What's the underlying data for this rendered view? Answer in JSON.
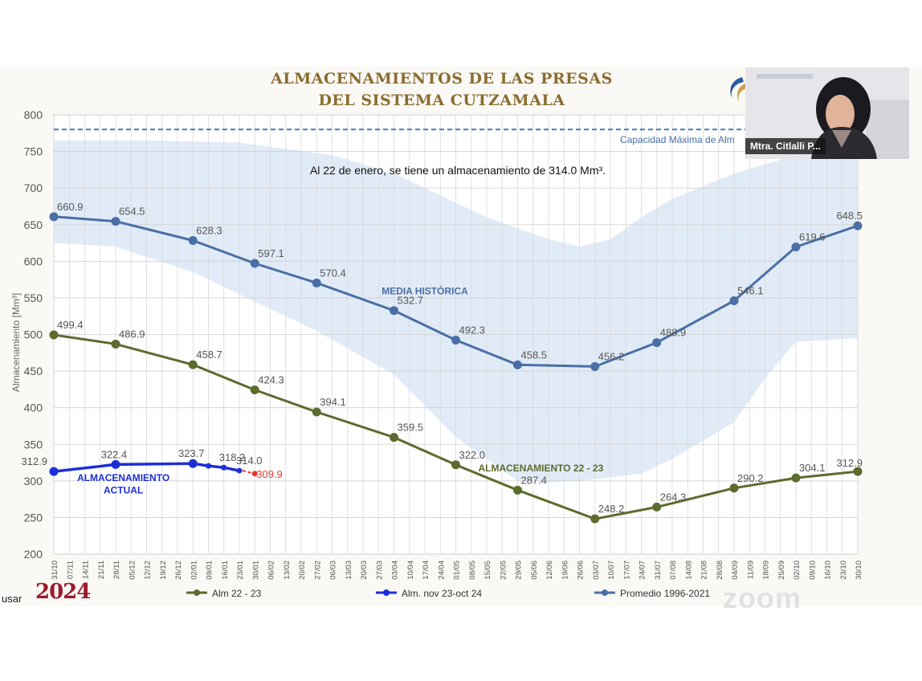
{
  "slide": {
    "title_line1": "ALMACENAMIENTOS DE LAS PRESAS",
    "title_line2": "DEL SISTEMA CUTZAMALA",
    "subtitle": "Al 22 de enero, se tiene un almacenamiento de 314.0 Mm³.",
    "capacity_label": "Capacidad Máxima de Alm",
    "brand_text": "2024",
    "user_label": "usar",
    "zoom_watermark": "zoom"
  },
  "video": {
    "participant_name": "Mtra. Citlalli P..."
  },
  "colors": {
    "alm2223": "#5c6b2e",
    "actual": "#1f2fd6",
    "promedio": "#4a6fa5",
    "band": "#dce8f6",
    "capacity": "#4a78b8",
    "projection": "#e53935",
    "title": "#8a6d2f"
  },
  "chart_data": {
    "type": "line",
    "ylabel": "Almacenamiento [Mm³]",
    "ylim": [
      200,
      800
    ],
    "yticks": [
      200,
      250,
      300,
      350,
      400,
      450,
      500,
      550,
      600,
      650,
      700,
      750,
      800
    ],
    "grid": true,
    "legend_position": "bottom",
    "x_labels": [
      "31/10",
      "07/11",
      "14/11",
      "21/11",
      "28/11",
      "05/12",
      "12/12",
      "19/12",
      "26/12",
      "02/01",
      "09/01",
      "16/01",
      "23/01",
      "30/01",
      "06/02",
      "13/02",
      "20/02",
      "27/02",
      "06/03",
      "13/03",
      "20/03",
      "27/03",
      "03/04",
      "10/04",
      "17/04",
      "24/04",
      "01/05",
      "08/05",
      "15/05",
      "22/05",
      "29/05",
      "05/06",
      "12/06",
      "19/06",
      "26/06",
      "03/07",
      "10/07",
      "17/07",
      "24/07",
      "31/07",
      "07/08",
      "14/08",
      "21/08",
      "28/08",
      "04/09",
      "11/09",
      "18/09",
      "25/09",
      "02/10",
      "09/10",
      "16/10",
      "23/10",
      "30/10"
    ],
    "capacity_line": 780,
    "series": [
      {
        "name": "Alm 22 - 23",
        "color": "#5c6b2e",
        "points": [
          [
            0,
            499.4
          ],
          [
            4,
            486.9
          ],
          [
            9,
            458.7
          ],
          [
            13,
            424.3
          ],
          [
            17,
            394.1
          ],
          [
            22,
            359.5
          ],
          [
            26,
            322.0
          ],
          [
            30,
            287.4
          ],
          [
            35,
            248.2
          ],
          [
            39,
            264.3
          ],
          [
            44,
            290.2
          ],
          [
            48,
            304.1
          ],
          [
            52,
            312.9
          ]
        ],
        "labels": [
          "499.4",
          "486.9",
          "458.7",
          "424.3",
          "394.1",
          "359.5",
          "322.0",
          "287.4",
          "248.2",
          "264.3",
          "290.2",
          "304.1",
          "312.9"
        ]
      },
      {
        "name": "Alm. nov 23-oct 24",
        "color": "#1f2fd6",
        "points": [
          [
            0,
            312.9
          ],
          [
            4,
            322.4
          ],
          [
            9,
            323.7
          ],
          [
            10,
            320.5
          ],
          [
            11,
            318.2
          ],
          [
            12,
            314.0
          ]
        ],
        "labels": [
          "312.9",
          "322.4",
          "323.7",
          "",
          "318.2",
          "314.0"
        ]
      },
      {
        "name": "Promedio 1996-2021",
        "color": "#4a6fa5",
        "points": [
          [
            0,
            660.9
          ],
          [
            4,
            654.5
          ],
          [
            9,
            628.3
          ],
          [
            13,
            597.1
          ],
          [
            17,
            570.4
          ],
          [
            22,
            532.7
          ],
          [
            26,
            492.3
          ],
          [
            30,
            458.5
          ],
          [
            35,
            456.2
          ],
          [
            39,
            488.9
          ],
          [
            44,
            546.1
          ],
          [
            48,
            619.6
          ],
          [
            52,
            648.5
          ]
        ],
        "labels": [
          "660.9",
          "654.5",
          "628.3",
          "597.1",
          "570.4",
          "532.7",
          "492.3",
          "458.5",
          "456.2",
          "488.9",
          "546.1",
          "619.6",
          "648.5"
        ]
      }
    ],
    "projection": {
      "from": [
        12,
        314.0
      ],
      "to": [
        13,
        309.9
      ],
      "label": "309.9"
    },
    "band": {
      "upper": [
        [
          0,
          765
        ],
        [
          6,
          765
        ],
        [
          12,
          762
        ],
        [
          18,
          745
        ],
        [
          22,
          720
        ],
        [
          26,
          680
        ],
        [
          28,
          660
        ],
        [
          30,
          645
        ],
        [
          32,
          630
        ],
        [
          34,
          620
        ],
        [
          36,
          630
        ],
        [
          38,
          660
        ],
        [
          40,
          685
        ],
        [
          44,
          720
        ],
        [
          48,
          745
        ],
        [
          52,
          760
        ]
      ],
      "lower": [
        [
          0,
          625
        ],
        [
          4,
          620
        ],
        [
          9,
          585
        ],
        [
          13,
          545
        ],
        [
          17,
          505
        ],
        [
          22,
          445
        ],
        [
          26,
          360
        ],
        [
          28,
          330
        ],
        [
          30,
          300
        ],
        [
          32,
          298
        ],
        [
          34,
          300
        ],
        [
          36,
          305
        ],
        [
          38,
          310
        ],
        [
          40,
          330
        ],
        [
          44,
          380
        ],
        [
          46,
          440
        ],
        [
          48,
          490
        ],
        [
          52,
          495
        ]
      ]
    },
    "annotations": [
      {
        "text": "MEDIA HISTÓRICA",
        "x": 24,
        "y": 555,
        "color": "#4a6fa5"
      },
      {
        "text": "ALMACENAMIENTO 22 - 23",
        "x": 31.5,
        "y": 313,
        "color": "#5c6b2e"
      },
      {
        "text": "ALMACENAMIENTO",
        "x": 4.5,
        "y": 300,
        "color": "#1f2fd6"
      },
      {
        "text": "ACTUAL",
        "x": 4.5,
        "y": 283,
        "color": "#1f2fd6"
      }
    ],
    "legend": [
      {
        "name": "Alm 22 - 23",
        "color": "#5c6b2e"
      },
      {
        "name": "Alm. nov 23-oct 24",
        "color": "#1f2fd6"
      },
      {
        "name": "Promedio 1996-2021",
        "color": "#4a6fa5"
      }
    ]
  }
}
